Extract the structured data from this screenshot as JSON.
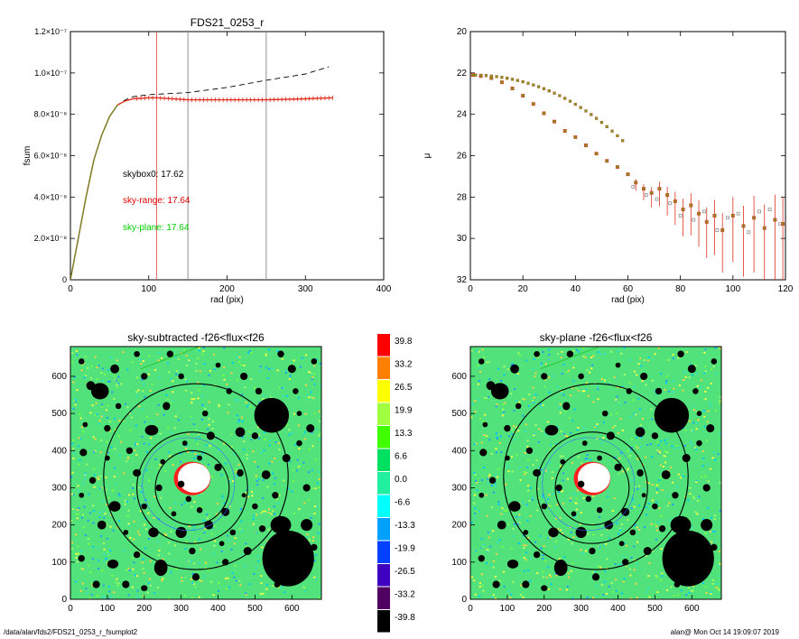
{
  "footer": {
    "left": "/data/alan/fds2/FDS21_0253_r_fsumplot2",
    "right": "alan@  Mon Oct 14 19:09:07 2019"
  },
  "chart_data": [
    {
      "type": "line",
      "title": "FDS21_0253_r",
      "xlabel": "rad (pix)",
      "ylabel": "fsum",
      "xlim": [
        0,
        400
      ],
      "ylim": [
        0,
        1.2e-07
      ],
      "xticks": [
        "0",
        "100",
        "200",
        "300",
        "400"
      ],
      "yticks": [
        "0",
        "2.0×10⁻⁸",
        "4.0×10⁻⁸",
        "6.0×10⁻⁸",
        "8.0×10⁻⁸",
        "1.0×10⁻⁷",
        "1.2×10⁻⁷"
      ],
      "vlines": [
        {
          "x": 110,
          "color": "#e06060"
        },
        {
          "x": 150,
          "color": "#909090"
        },
        {
          "x": 250,
          "color": "#909090"
        }
      ],
      "annotations": [
        {
          "text": "skybox0: 17.62",
          "color": "#000000"
        },
        {
          "text": "sky-range: 17.64",
          "color": "#e00000"
        },
        {
          "text": "sky-plane: 17.64",
          "color": "#00d000"
        }
      ],
      "series": [
        {
          "style": "dashed",
          "color": "#000000",
          "x": [
            0,
            10,
            20,
            30,
            40,
            50,
            60,
            70,
            80,
            100,
            150,
            200,
            250,
            300,
            330
          ],
          "y": [
            0,
            2e-08,
            4e-08,
            5.8e-08,
            7e-08,
            7.9e-08,
            8.45e-08,
            8.7e-08,
            8.85e-08,
            8.95e-08,
            9.05e-08,
            9.3e-08,
            9.65e-08,
            9.95e-08,
            1.03e-07
          ]
        },
        {
          "style": "solid",
          "color": "#e03020",
          "x": [
            0,
            10,
            20,
            30,
            40,
            50,
            60,
            70,
            80,
            100,
            110,
            150,
            200,
            250,
            300,
            335
          ],
          "y": [
            0,
            2e-08,
            4e-08,
            5.8e-08,
            7e-08,
            7.9e-08,
            8.45e-08,
            8.65e-08,
            8.75e-08,
            8.8e-08,
            8.8e-08,
            8.7e-08,
            8.7e-08,
            8.7e-08,
            8.75e-08,
            8.8e-08
          ]
        }
      ]
    },
    {
      "type": "scatter",
      "title": "",
      "xlabel": "rad (pix)",
      "ylabel": "μ",
      "xlim": [
        0,
        120
      ],
      "ylim": [
        32,
        20
      ],
      "xticks": [
        "0",
        "20",
        "40",
        "60",
        "80",
        "100",
        "120"
      ],
      "yticks": [
        "20",
        "22",
        "24",
        "26",
        "28",
        "30",
        "32"
      ],
      "series": [
        {
          "color": "#e03020",
          "x": [
            1,
            4,
            8,
            12,
            16,
            20,
            24,
            28,
            32,
            36,
            40,
            44,
            48,
            52,
            56,
            60,
            63,
            66,
            69,
            72,
            75,
            78,
            81,
            84,
            87,
            90,
            93,
            96,
            100,
            104,
            108,
            112,
            116,
            119
          ],
          "y": [
            22.1,
            22.15,
            22.25,
            22.45,
            22.75,
            23.1,
            23.5,
            23.95,
            24.35,
            24.8,
            25.1,
            25.5,
            25.9,
            26.25,
            26.55,
            26.9,
            27.3,
            27.6,
            27.8,
            27.6,
            27.9,
            28.2,
            28.6,
            28.4,
            28.8,
            29.2,
            28.9,
            29.6,
            28.9,
            29.4,
            29.0,
            29.5,
            29.1,
            29.3
          ]
        },
        {
          "color": "#909090",
          "x": [
            62,
            67,
            71,
            76,
            80,
            85,
            89,
            94,
            98,
            102,
            106,
            110,
            114,
            118
          ],
          "y": [
            27.5,
            27.9,
            28.1,
            28.3,
            28.9,
            29.1,
            28.7,
            29.6,
            29.0,
            28.8,
            29.7,
            28.7,
            28.6,
            29.3
          ]
        }
      ]
    },
    {
      "type": "heatmap",
      "title": "sky-subtracted -f26<flux<f26",
      "xlim": [
        0,
        680
      ],
      "ylim": [
        0,
        680
      ],
      "xticks": [
        "0",
        "100",
        "200",
        "300",
        "400",
        "500",
        "600"
      ],
      "yticks": [
        "0",
        "100",
        "200",
        "300",
        "400",
        "500",
        "600"
      ]
    },
    {
      "type": "heatmap",
      "title": "sky-plane -f26<flux<f26",
      "xlim": [
        0,
        680
      ],
      "ylim": [
        0,
        680
      ],
      "xticks": [
        "0",
        "100",
        "200",
        "300",
        "400",
        "500",
        "600"
      ],
      "yticks": [
        "0",
        "100",
        "200",
        "300",
        "400",
        "500",
        "600"
      ]
    }
  ],
  "colorbar": {
    "labels": [
      "39.8",
      "33.2",
      "26.5",
      "19.9",
      "13.3",
      "6.6",
      "0.0",
      "-6.6",
      "-13.3",
      "-19.9",
      "-26.5",
      "-33.2",
      "-39.8"
    ],
    "colors": [
      "#ff0000",
      "#ff8000",
      "#ffff00",
      "#a0ff40",
      "#40ff00",
      "#00e060",
      "#20f0a0",
      "#00ffff",
      "#00a0ff",
      "#0040ff",
      "#4000c0",
      "#500060",
      "#000000"
    ]
  }
}
